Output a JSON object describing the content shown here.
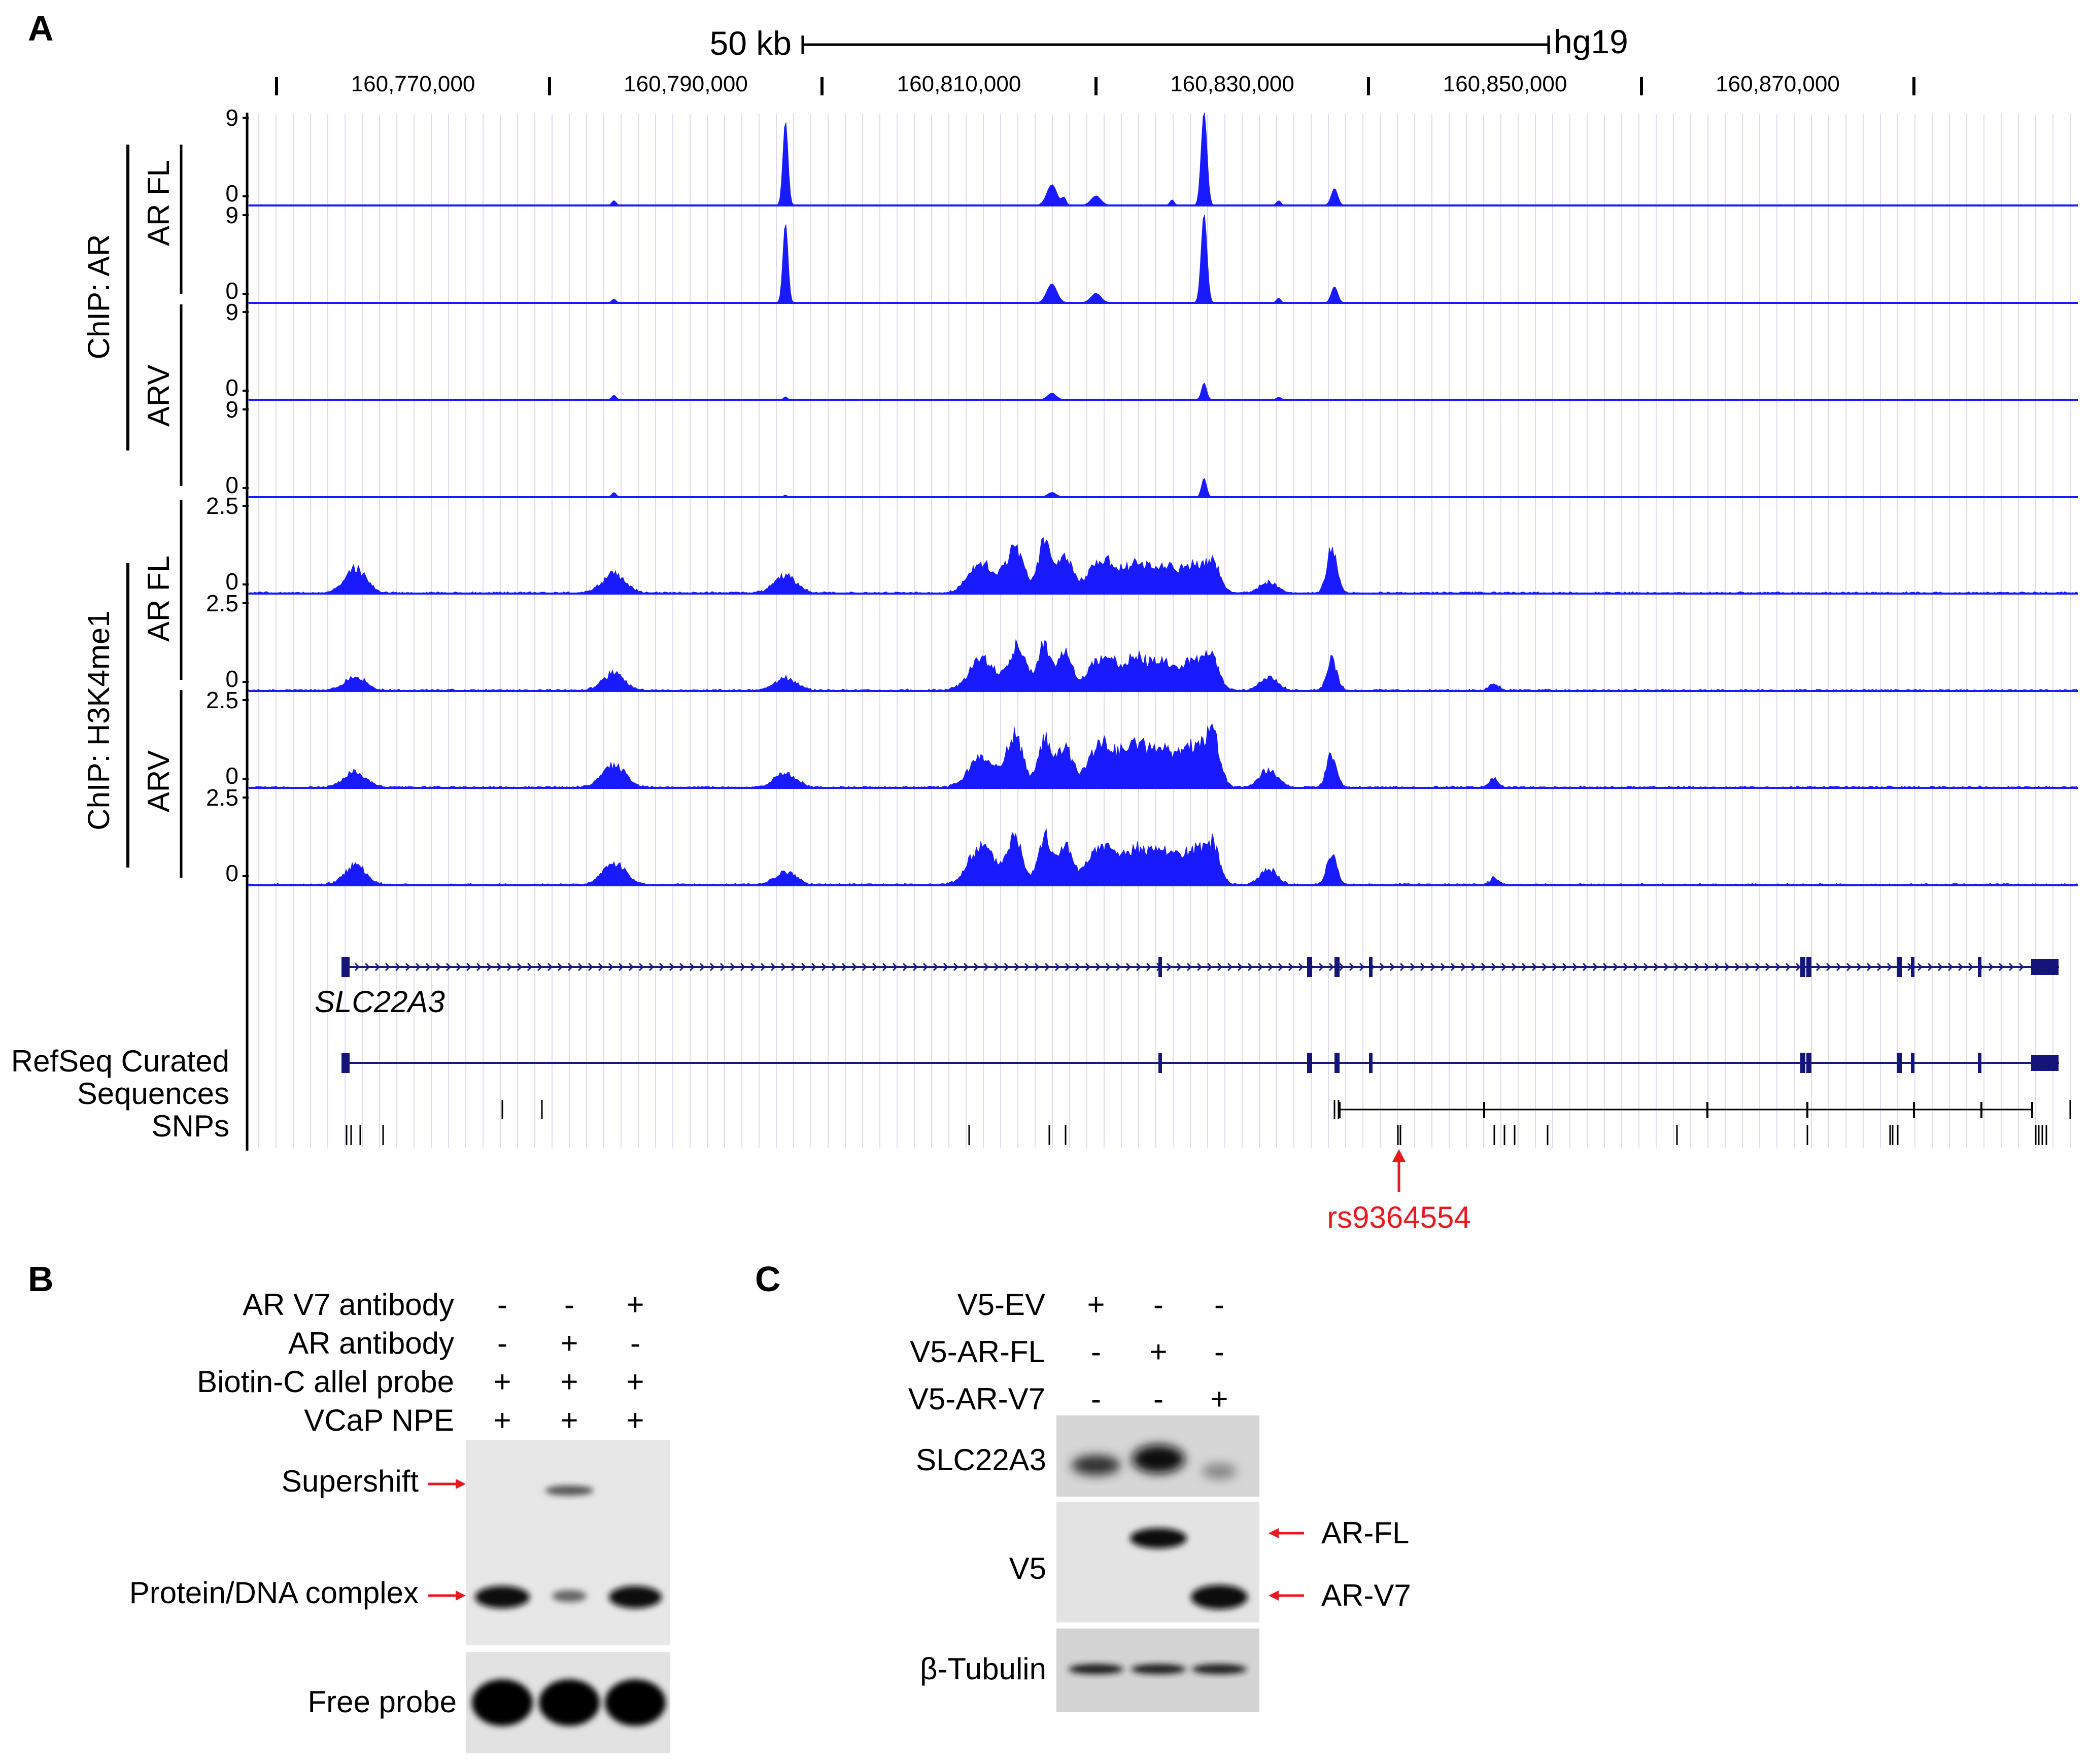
{
  "panel_a": {
    "label": "A",
    "scale_label": "50 kb",
    "assembly": "hg19",
    "coordinates": [
      "160,770,000",
      "160,790,000",
      "160,810,000",
      "160,830,000",
      "160,850,000",
      "160,870,000"
    ],
    "chip_ar_label": "ChIP: AR",
    "chip_h3k4me1_label": "ChIP: H3K4me1",
    "group_ar_fl": "AR FL",
    "group_arv": "ARV",
    "tracks": [
      {
        "ymax": "9",
        "ymin": "0"
      },
      {
        "ymax": "9",
        "ymin": "0"
      },
      {
        "ymax": "9",
        "ymin": "0"
      },
      {
        "ymax": "9",
        "ymin": "0"
      },
      {
        "ymax": "2.5",
        "ymin": "0"
      },
      {
        "ymax": "2.5",
        "ymin": "0"
      },
      {
        "ymax": "2.5",
        "ymin": "0"
      },
      {
        "ymax": "2.5",
        "ymin": "0"
      }
    ],
    "gene_name": "SLC22A3",
    "refseq_line1": "RefSeq Curated",
    "refseq_line2": "Sequences",
    "snps_label": "SNPs",
    "snp_highlight": "rs9364554",
    "highlight_color": "#e8191e",
    "signal_color": "#1a1aff"
  },
  "panel_b": {
    "label": "B",
    "conditions": [
      {
        "name": "AR V7 antibody",
        "lanes": [
          "-",
          "-",
          "+"
        ]
      },
      {
        "name": "AR antibody",
        "lanes": [
          "-",
          "+",
          "-"
        ]
      },
      {
        "name": "Biotin-C allel probe",
        "lanes": [
          "+",
          "+",
          "+"
        ]
      },
      {
        "name": "VCaP NPE",
        "lanes": [
          "+",
          "+",
          "+"
        ]
      }
    ],
    "band_labels": {
      "supershift": "Supershift",
      "complex": "Protein/DNA complex",
      "free": "Free probe"
    }
  },
  "panel_c": {
    "label": "C",
    "conditions": [
      {
        "name": "V5-EV",
        "lanes": [
          "+",
          "-",
          "-"
        ]
      },
      {
        "name": "V5-AR-FL",
        "lanes": [
          "-",
          "+",
          "-"
        ]
      },
      {
        "name": "V5-AR-V7",
        "lanes": [
          "-",
          "-",
          "+"
        ]
      }
    ],
    "blots": [
      "SLC22A3",
      "V5",
      "β-Tubulin"
    ],
    "arrow_labels": [
      "AR-FL",
      "AR-V7"
    ]
  }
}
